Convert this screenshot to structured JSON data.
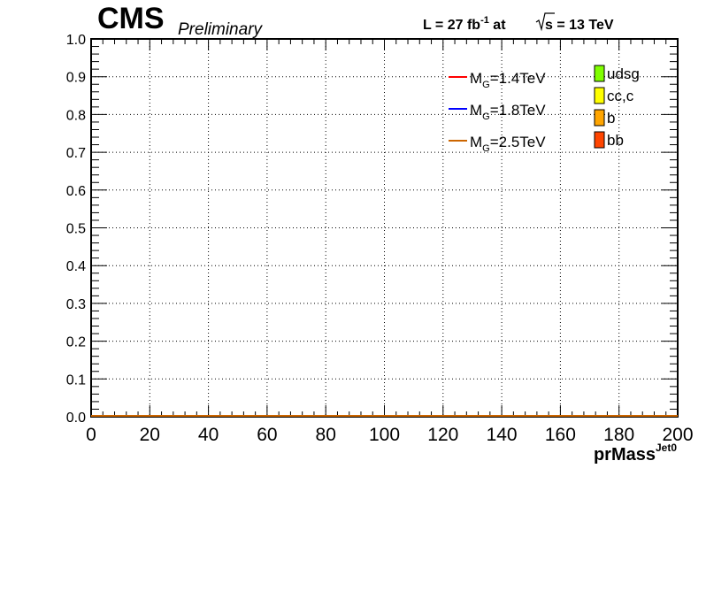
{
  "header": {
    "experiment": "CMS",
    "status": "Preliminary",
    "lumi_prefix": "L = 27 fb",
    "lumi_exp": "-1",
    "lumi_mid": " at ",
    "sqrt_s": "s",
    "energy_suffix": " = 13 TeV"
  },
  "chart_data": {
    "type": "line",
    "title": "",
    "xlabel_main": "prMass",
    "xlabel_sup": "Jet0",
    "ylabel": "",
    "xlim": [
      0,
      200
    ],
    "ylim": [
      0.0,
      1.0
    ],
    "x_ticks": [
      0,
      20,
      40,
      60,
      80,
      100,
      120,
      140,
      160,
      180,
      200
    ],
    "x_tick_labels": [
      "0",
      "20",
      "40",
      "60",
      "80",
      "100",
      "120",
      "140",
      "160",
      "180",
      "200"
    ],
    "y_ticks": [
      0.0,
      0.1,
      0.2,
      0.3,
      0.4,
      0.5,
      0.6,
      0.7,
      0.8,
      0.9,
      1.0
    ],
    "y_tick_labels": [
      "0.0",
      "0.1",
      "0.2",
      "0.3",
      "0.4",
      "0.5",
      "0.6",
      "0.7",
      "0.8",
      "0.9",
      "1.0"
    ],
    "grid": true,
    "series": [
      {
        "name_main": "M",
        "name_sub": "G",
        "name_rest": "=1.4TeV",
        "color": "#ff0000",
        "x": [
          0,
          200
        ],
        "y": [
          0,
          0
        ]
      },
      {
        "name_main": "M",
        "name_sub": "G",
        "name_rest": "=1.8TeV",
        "color": "#0000ff",
        "x": [
          0,
          200
        ],
        "y": [
          0,
          0
        ]
      },
      {
        "name_main": "M",
        "name_sub": "G",
        "name_rest": "=2.5TeV",
        "color": "#cc6600",
        "x": [
          0,
          200
        ],
        "y": [
          0,
          0
        ]
      }
    ],
    "fill_legend": [
      {
        "name": "udsg",
        "color": "#80ff00"
      },
      {
        "name": "cc,c",
        "color": "#ffff00"
      },
      {
        "name": "b",
        "color": "#ffa500"
      },
      {
        "name": "bb",
        "color": "#ff4500"
      }
    ],
    "legend_position": "top-right"
  }
}
